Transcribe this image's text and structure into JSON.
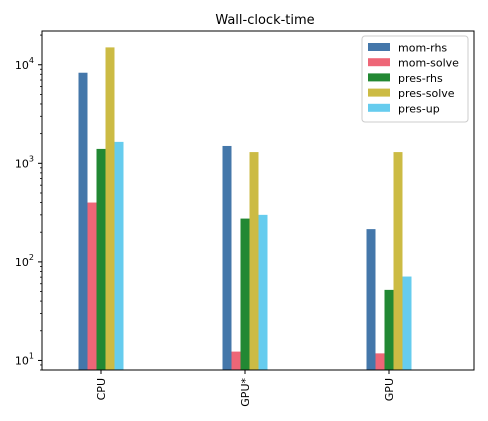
{
  "chart_data": {
    "type": "bar",
    "title": "Wall-clock-time",
    "xlabel": "",
    "ylabel": "",
    "yscale": "log",
    "ylim": [
      8,
      22000
    ],
    "yticks": [
      {
        "base": "10",
        "exp": "1",
        "value": 10
      },
      {
        "base": "10",
        "exp": "2",
        "value": 100
      },
      {
        "base": "10",
        "exp": "3",
        "value": 1000
      },
      {
        "base": "10",
        "exp": "4",
        "value": 10000
      }
    ],
    "categories": [
      "CPU",
      "GPU*",
      "GPU"
    ],
    "series": [
      {
        "name": "mom-rhs",
        "color": "#4477aa",
        "values": [
          8300,
          1500,
          215
        ]
      },
      {
        "name": "mom-solve",
        "color": "#ee6677",
        "values": [
          400,
          12.3,
          11.8
        ]
      },
      {
        "name": "pres-rhs",
        "color": "#228833",
        "values": [
          1400,
          275,
          52
        ]
      },
      {
        "name": "pres-solve",
        "color": "#ccbb44",
        "values": [
          15000,
          1300,
          1300
        ]
      },
      {
        "name": "pres-up",
        "color": "#66ccee",
        "values": [
          1650,
          300,
          71
        ]
      }
    ],
    "grid": false,
    "legend_position": "top-right"
  }
}
